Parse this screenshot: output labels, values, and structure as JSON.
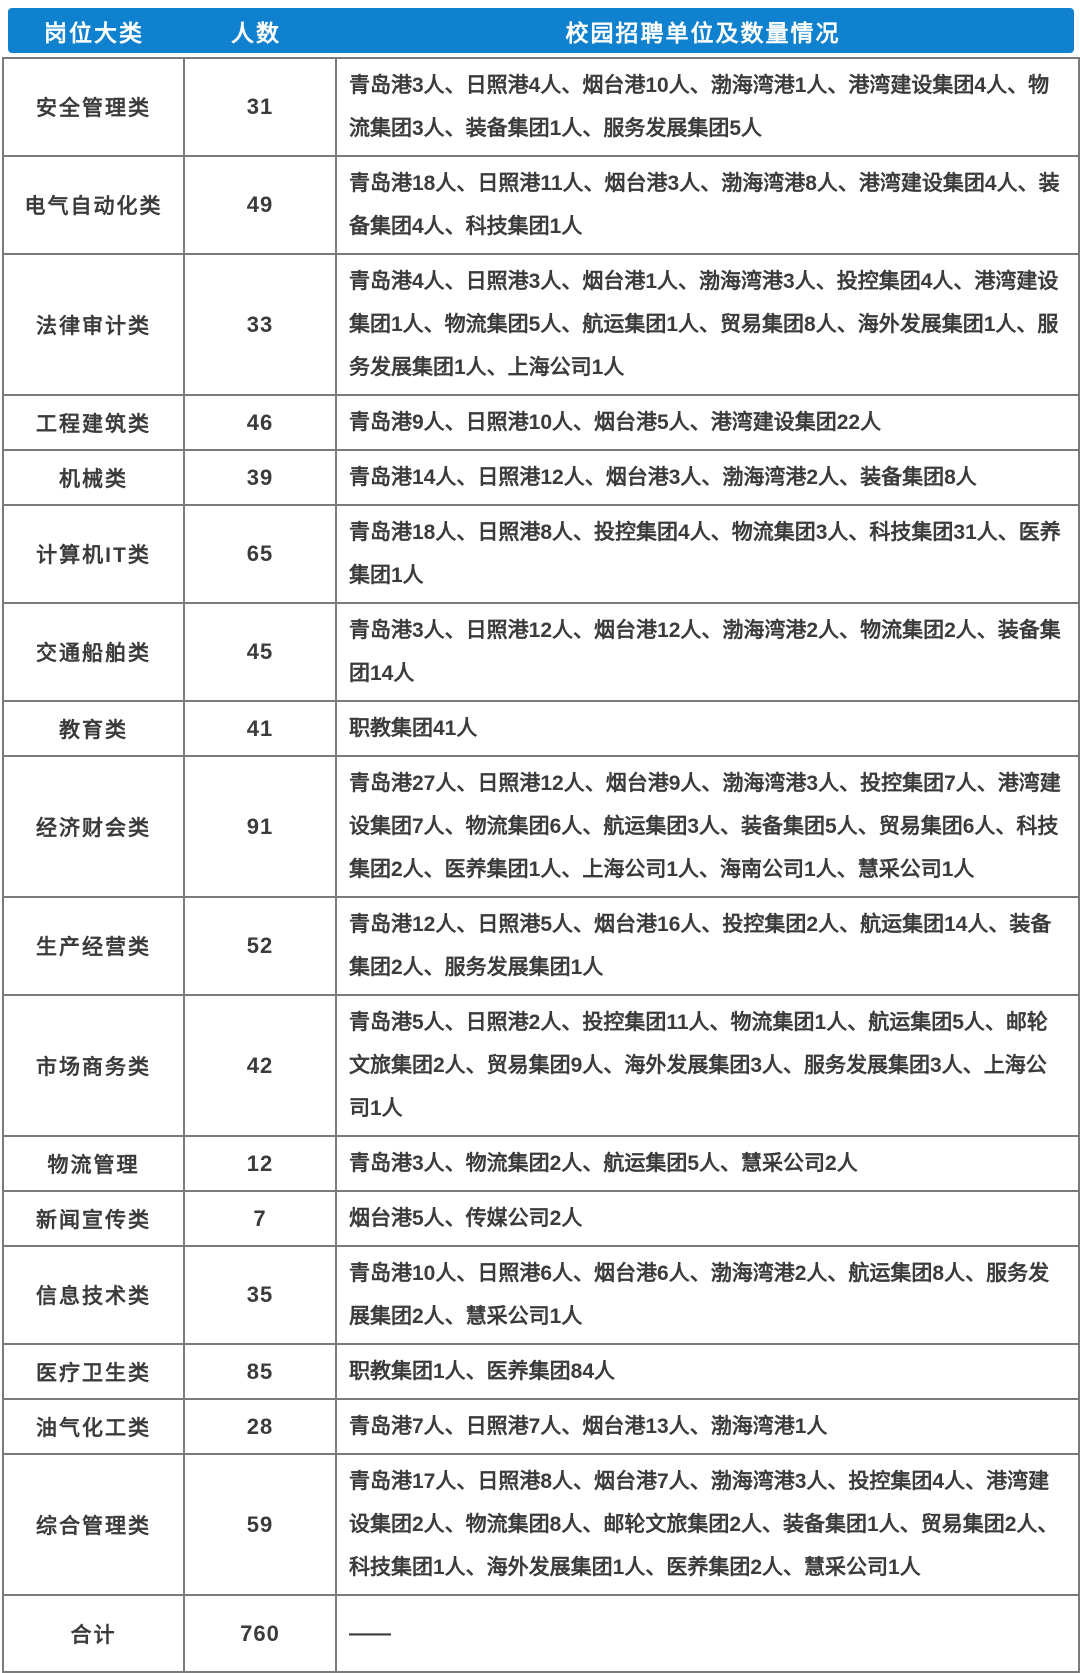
{
  "header": {
    "columns": [
      {
        "label": "岗位大类"
      },
      {
        "label": "人数"
      },
      {
        "label": "校园招聘单位及数量情况"
      }
    ]
  },
  "table": {
    "rows": [
      {
        "category": "安全管理类",
        "count": "31",
        "detail": "青岛港3人、日照港4人、烟台港10人、渤海湾港1人、港湾建设集团4人、物流集团3人、装备集团1人、服务发展集团5人"
      },
      {
        "category": "电气自动化类",
        "count": "49",
        "detail": "青岛港18人、日照港11人、烟台港3人、渤海湾港8人、港湾建设集团4人、装备集团4人、科技集团1人"
      },
      {
        "category": "法律审计类",
        "count": "33",
        "detail": "青岛港4人、日照港3人、烟台港1人、渤海湾港3人、投控集团4人、港湾建设集团1人、物流集团5人、航运集团1人、贸易集团8人、海外发展集团1人、服务发展集团1人、上海公司1人"
      },
      {
        "category": "工程建筑类",
        "count": "46",
        "detail": "青岛港9人、日照港10人、烟台港5人、港湾建设集团22人"
      },
      {
        "category": "机械类",
        "count": "39",
        "detail": "青岛港14人、日照港12人、烟台港3人、渤海湾港2人、装备集团8人"
      },
      {
        "category": "计算机IT类",
        "count": "65",
        "detail": "青岛港18人、日照港8人、投控集团4人、物流集团3人、科技集团31人、医养集团1人"
      },
      {
        "category": "交通船舶类",
        "count": "45",
        "detail": "青岛港3人、日照港12人、烟台港12人、渤海湾港2人、物流集团2人、装备集团14人"
      },
      {
        "category": "教育类",
        "count": "41",
        "detail": "职教集团41人"
      },
      {
        "category": "经济财会类",
        "count": "91",
        "detail": "青岛港27人、日照港12人、烟台港9人、渤海湾港3人、投控集团7人、港湾建设集团7人、物流集团6人、航运集团3人、装备集团5人、贸易集团6人、科技集团2人、医养集团1人、上海公司1人、海南公司1人、慧采公司1人"
      },
      {
        "category": "生产经营类",
        "count": "52",
        "detail": "青岛港12人、日照港5人、烟台港16人、投控集团2人、航运集团14人、装备集团2人、服务发展集团1人"
      },
      {
        "category": "市场商务类",
        "count": "42",
        "detail": "青岛港5人、日照港2人、投控集团11人、物流集团1人、航运集团5人、邮轮文旅集团2人、贸易集团9人、海外发展集团3人、服务发展集团3人、上海公司1人"
      },
      {
        "category": "物流管理",
        "count": "12",
        "detail": "青岛港3人、物流集团2人、航运集团5人、慧采公司2人"
      },
      {
        "category": "新闻宣传类",
        "count": "7",
        "detail": "烟台港5人、传媒公司2人"
      },
      {
        "category": "信息技术类",
        "count": "35",
        "detail": "青岛港10人、日照港6人、烟台港6人、渤海湾港2人、航运集团8人、服务发展集团2人、慧采公司1人"
      },
      {
        "category": "医疗卫生类",
        "count": "85",
        "detail": "职教集团1人、医养集团84人"
      },
      {
        "category": "油气化工类",
        "count": "28",
        "detail": "青岛港7人、日照港7人、烟台港13人、渤海湾港1人"
      },
      {
        "category": "综合管理类",
        "count": "59",
        "detail": "青岛港17人、日照港8人、烟台港7人、渤海湾港3人、投控集团4人、港湾建设集团2人、物流集团8人、邮轮文旅集团2人、装备集团1人、贸易集团2人、科技集团1人、海外发展集团1人、医养集团2人、慧采公司1人"
      }
    ],
    "total_row": {
      "category": "合计",
      "count": "760",
      "detail": "——"
    }
  },
  "colors": {
    "header_bg": "#1081CE",
    "header_text": "#FFFFFF",
    "body_text": "#3B3B3D",
    "border": "#7A7A7A",
    "background": "#FFFFFF"
  }
}
